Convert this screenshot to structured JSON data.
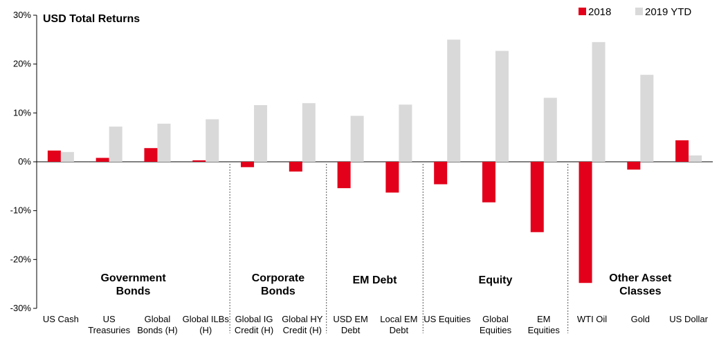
{
  "chart_data": {
    "type": "bar",
    "title": "USD Total Returns",
    "xlabel": "",
    "ylabel": "",
    "ylim": [
      -30,
      30
    ],
    "yticks": [
      "30%",
      "20%",
      "10%",
      "0%",
      "-10%",
      "-20%",
      "-30%"
    ],
    "ytick_values": [
      30,
      20,
      10,
      0,
      -10,
      -20,
      -30
    ],
    "legend_position": "top-right",
    "categories": [
      [
        "US Cash"
      ],
      [
        "US",
        "Treasuries"
      ],
      [
        "Global",
        "Bonds (H)"
      ],
      [
        "Global ILBs",
        "(H)"
      ],
      [
        "Global IG",
        "Credit (H)"
      ],
      [
        "Global HY",
        "Credit (H)"
      ],
      [
        "USD EM",
        "Debt"
      ],
      [
        "Local EM",
        "Debt"
      ],
      [
        "US Equities"
      ],
      [
        "Global",
        "Equities"
      ],
      [
        "EM",
        "Equities"
      ],
      [
        "WTI Oil"
      ],
      [
        "Gold"
      ],
      [
        "US Dollar"
      ]
    ],
    "series": [
      {
        "name": "2018",
        "color": "#e2001a",
        "values": [
          2.3,
          0.8,
          2.8,
          0.3,
          -1.1,
          -2.0,
          -5.4,
          -6.3,
          -4.6,
          -8.3,
          -14.4,
          -24.8,
          -1.6,
          4.4
        ]
      },
      {
        "name": "2019 YTD",
        "color": "#d9d9d9",
        "values": [
          2.0,
          7.2,
          7.8,
          8.7,
          11.6,
          12.0,
          9.4,
          11.7,
          25.0,
          22.7,
          13.1,
          24.5,
          17.8,
          1.3
        ]
      }
    ],
    "groups": [
      {
        "label": [
          "Government",
          "Bonds"
        ],
        "start": 0,
        "end": 3
      },
      {
        "label": [
          "Corporate",
          "Bonds"
        ],
        "start": 4,
        "end": 5
      },
      {
        "label": [
          "EM Debt"
        ],
        "start": 6,
        "end": 7
      },
      {
        "label": [
          "Equity"
        ],
        "start": 8,
        "end": 10
      },
      {
        "label": [
          "Other Asset",
          "Classes"
        ],
        "start": 11,
        "end": 13
      }
    ]
  }
}
